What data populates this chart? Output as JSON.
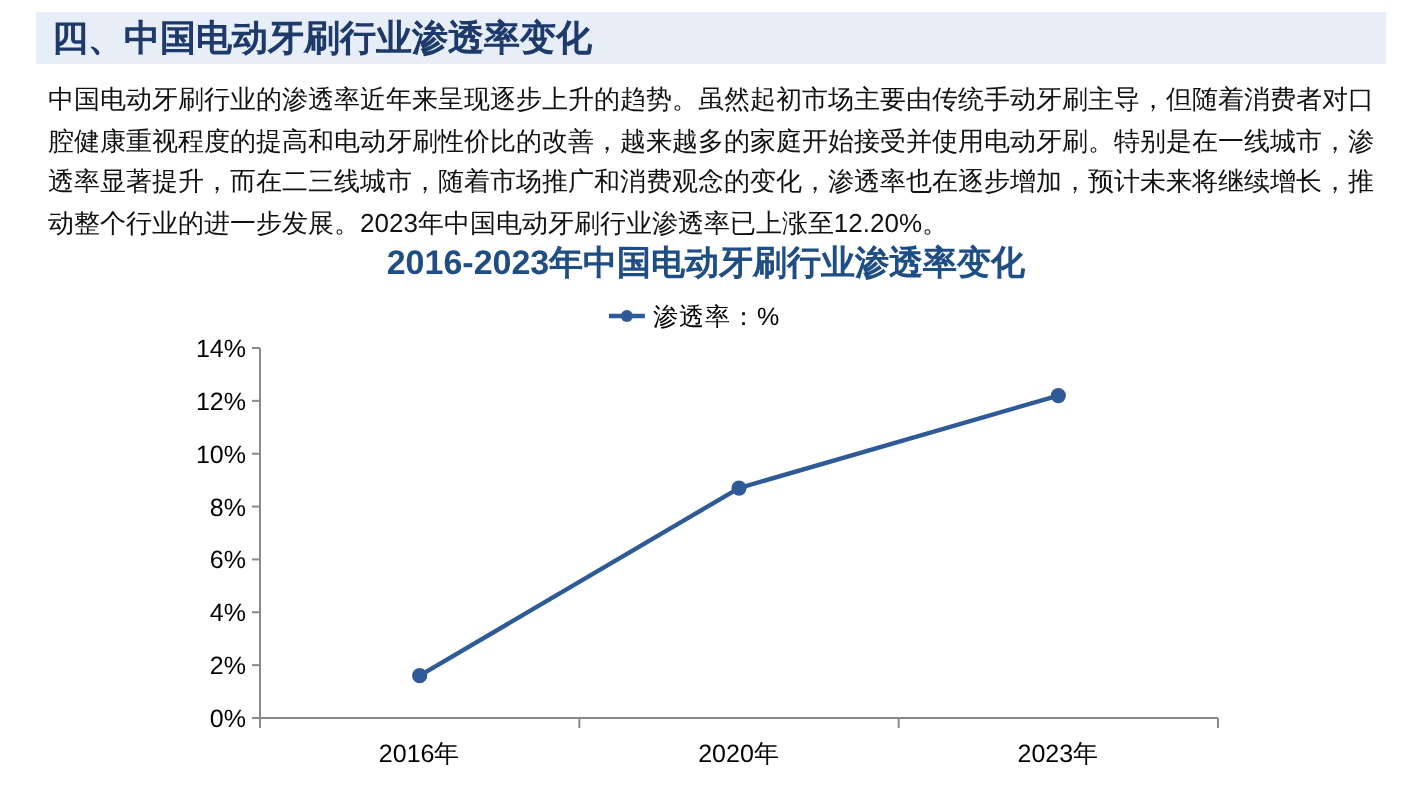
{
  "chart_data": {
    "type": "line",
    "title": "2016-2023年中国电动牙刷行业渗透率变化",
    "annotations": [
      "四、中国电动牙刷行业渗透率变化",
      "中国电动牙刷行业的渗透率近年来呈现逐步上升的趋势。虽然起初市场主要由传统手动牙刷主导，但随着消费者对口腔健康重视程度的提高和电动牙刷性价比的改善，越来越多的家庭开始接受并使用电动牙刷。特别是在一线城市，渗透率显著提升，而在二三线城市，随着市场推广和消费观念的变化，渗透率也在逐步增加，预计未来将继续增长，推动整个行业的进一步发展。2023年中国电动牙刷行业渗透率已上涨至12.20%。"
    ],
    "categories": [
      "2016年",
      "2020年",
      "2023年"
    ],
    "series": [
      {
        "name": "渗透率：%",
        "color": "#2e5a97",
        "values": [
          1.6,
          8.7,
          12.2
        ]
      }
    ],
    "ylim": [
      0,
      14
    ],
    "yticks": [
      {
        "value": 0,
        "label": "0%"
      },
      {
        "value": 2,
        "label": "2%"
      },
      {
        "value": 4,
        "label": "4%"
      },
      {
        "value": 6,
        "label": "6%"
      },
      {
        "value": 8,
        "label": "8%"
      },
      {
        "value": 10,
        "label": "10%"
      },
      {
        "value": 12,
        "label": "12%"
      },
      {
        "value": 14,
        "label": "14%"
      }
    ],
    "legend": "top",
    "marker": "circle",
    "line_style": "solid"
  }
}
